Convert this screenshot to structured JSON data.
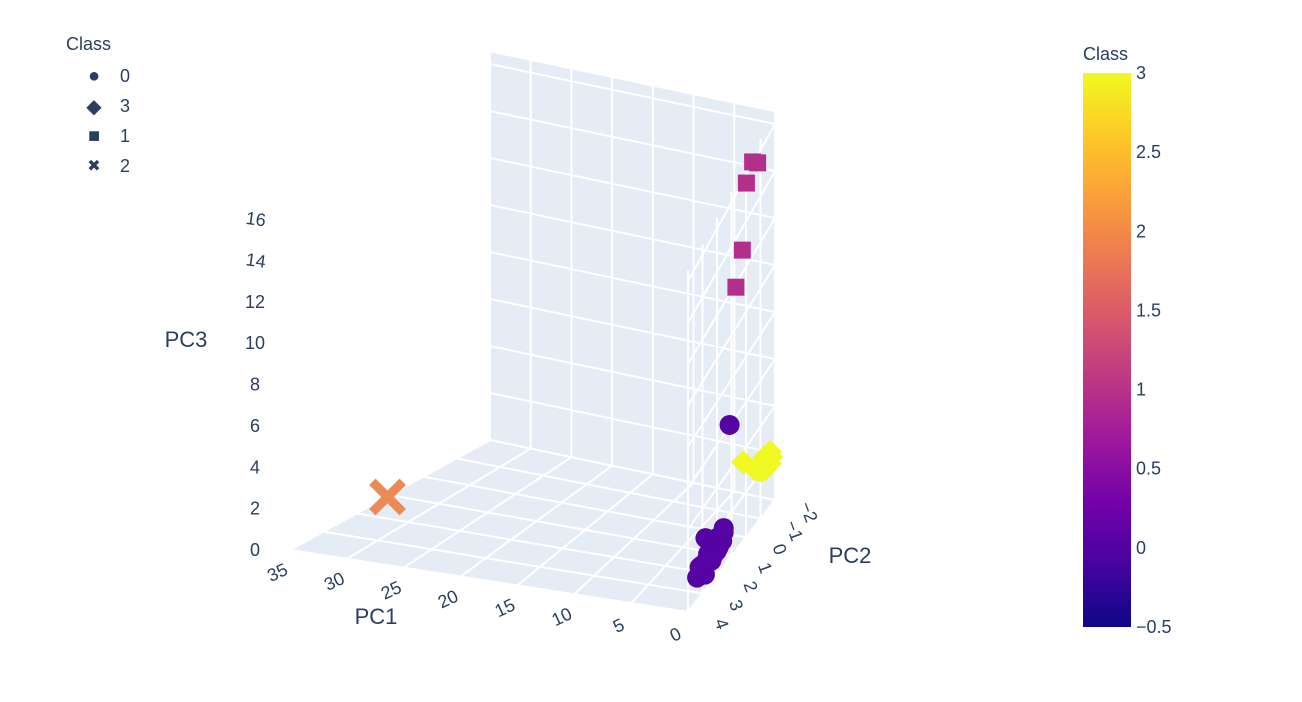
{
  "legend": {
    "title": "Class",
    "items": [
      {
        "label": "0",
        "symbol": "circle"
      },
      {
        "label": "3",
        "symbol": "diamond"
      },
      {
        "label": "1",
        "symbol": "square"
      },
      {
        "label": "2",
        "symbol": "x"
      }
    ]
  },
  "colorbar": {
    "title": "Class",
    "range": [
      -0.5,
      3
    ],
    "ticks": [
      "3",
      "2.5",
      "2",
      "1.5",
      "1",
      "0.5",
      "0",
      "−0.5"
    ],
    "colors": [
      "#0d0887",
      "#46039f",
      "#7201a8",
      "#9c179e",
      "#bd3786",
      "#d8576b",
      "#ed7953",
      "#fb9f3a",
      "#fdca26",
      "#f0f921"
    ]
  },
  "chart_data": {
    "type": "scatter3d",
    "axes": {
      "x": {
        "label": "PC1",
        "ticks": [
          "0",
          "5",
          "10",
          "15",
          "20",
          "25",
          "30",
          "35"
        ]
      },
      "y": {
        "label": "PC2",
        "ticks": [
          "−2",
          "−1",
          "0",
          "1",
          "2",
          "3",
          "4"
        ]
      },
      "z": {
        "label": "PC3",
        "ticks": [
          "0",
          "2",
          "4",
          "6",
          "8",
          "10",
          "12",
          "14",
          "16"
        ]
      }
    },
    "series": [
      {
        "name": "0",
        "symbol": "circle",
        "color": "#5603a3",
        "points": [
          [
            0.5,
            0.8,
            5.7
          ],
          [
            3.0,
            0.8,
            0.4
          ],
          [
            1.5,
            2.0,
            0.3
          ],
          [
            1.2,
            2.5,
            0.2
          ],
          [
            0.8,
            2.3,
            0.4
          ],
          [
            1.0,
            2.0,
            0.6
          ],
          [
            0.6,
            1.8,
            0.7
          ],
          [
            0.4,
            1.6,
            0.9
          ],
          [
            0.9,
            1.9,
            0.5
          ],
          [
            1.3,
            1.7,
            0.6
          ],
          [
            0.7,
            1.4,
            1.0
          ],
          [
            0.5,
            1.2,
            1.2
          ],
          [
            1.1,
            1.6,
            0.8
          ],
          [
            0.3,
            1.8,
            0.9
          ],
          [
            1.0,
            1.3,
            1.0
          ],
          [
            0.6,
            2.4,
            0.3
          ],
          [
            0.2,
            1.5,
            1.1
          ],
          [
            1.4,
            2.2,
            0.4
          ],
          [
            0.8,
            1.0,
            1.2
          ],
          [
            0.4,
            2.1,
            0.7
          ]
        ]
      },
      {
        "name": "3",
        "symbol": "diamond",
        "color": "#f0f921",
        "points": [
          [
            2.0,
            -1.0,
            2.3
          ],
          [
            0.5,
            -1.2,
            1.9
          ],
          [
            0.3,
            -1.4,
            2.0
          ],
          [
            0.6,
            -1.6,
            2.1
          ],
          [
            0.2,
            -1.8,
            2.0
          ],
          [
            0.4,
            -1.3,
            1.8
          ],
          [
            0.7,
            -1.5,
            1.9
          ],
          [
            0.1,
            -1.7,
            1.8
          ],
          [
            0.8,
            -1.1,
            2.0
          ],
          [
            0.3,
            -1.9,
            1.9
          ],
          [
            0.6,
            -2.0,
            2.0
          ],
          [
            0.9,
            -1.4,
            1.7
          ],
          [
            0.2,
            -1.2,
            2.2
          ],
          [
            0.5,
            -1.6,
            1.6
          ]
        ]
      },
      {
        "name": "1",
        "symbol": "square",
        "color": "#b2308b",
        "points": [
          [
            0.3,
            0.5,
            11.6
          ],
          [
            0.4,
            0.0,
            12.7
          ],
          [
            0.6,
            -0.4,
            15.2
          ],
          [
            0.4,
            -0.7,
            15.8
          ],
          [
            0.5,
            -1.1,
            15.3
          ]
        ]
      },
      {
        "name": "2",
        "symbol": "x",
        "color": "#ec8a56",
        "points": [
          [
            32.0,
            2.0,
            1.0
          ]
        ]
      }
    ]
  }
}
